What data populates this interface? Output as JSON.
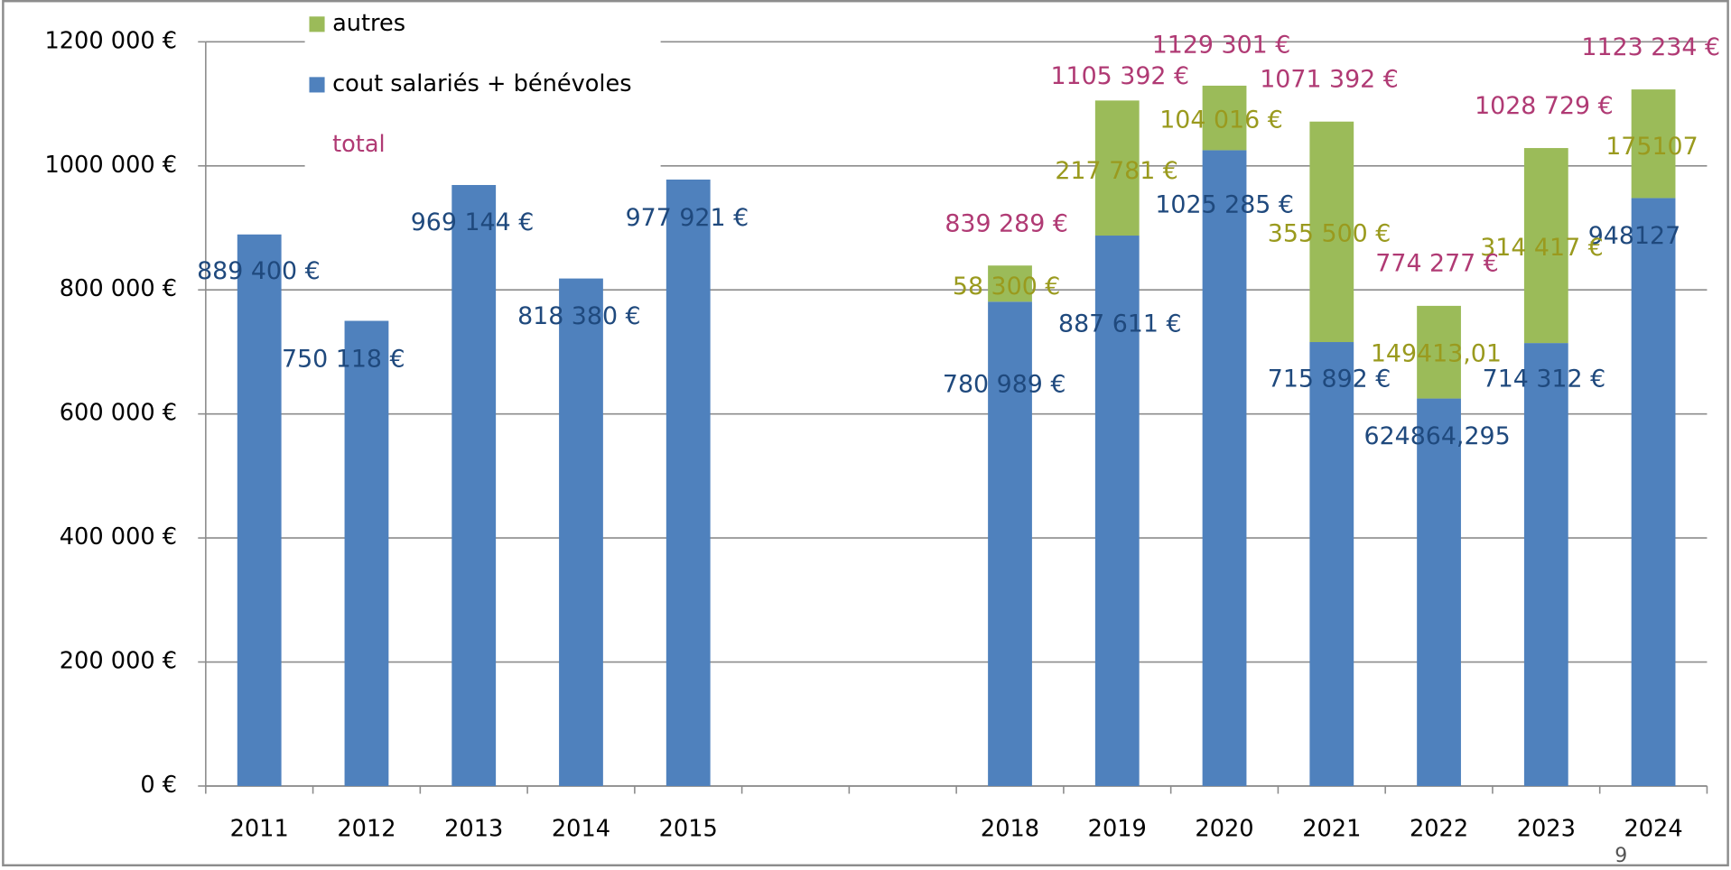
{
  "chart_data": {
    "type": "stacked_bar",
    "categories": [
      "2011",
      "2012",
      "2013",
      "2014",
      "2015",
      null,
      null,
      "2018",
      "2019",
      "2020",
      "2021",
      "2022",
      "2023",
      "2024"
    ],
    "series": [
      {
        "name": "cout salariés + bénévoles",
        "color": "#4f81bd",
        "values": [
          889400,
          750118,
          969144,
          818380,
          977921,
          null,
          null,
          780989,
          887611,
          1025285,
          715892,
          624864.295,
          714312,
          948127
        ],
        "value_labels": [
          "889 400 €",
          "750 118 €",
          "969 144 €",
          "818 380 €",
          "977 921 €",
          null,
          null,
          "780 989 €",
          "887 611 €",
          "1025 285 €",
          "715 892 €",
          "624864,295",
          "714 312 €",
          "948127"
        ],
        "label_color": "#1f497d"
      },
      {
        "name": "autres",
        "color": "#9bbb59",
        "values": [
          null,
          null,
          null,
          null,
          null,
          null,
          null,
          58300,
          217781,
          104016,
          355500,
          149413.01,
          314417,
          175107
        ],
        "value_labels": [
          null,
          null,
          null,
          null,
          null,
          null,
          null,
          "58 300 €",
          "217 781 €",
          "104 016 €",
          "355 500 €",
          "149413,01",
          "314 417 €",
          "175107"
        ],
        "label_color": "#9a9a1e"
      },
      {
        "name": "total",
        "color": "#b03a74",
        "values": [
          null,
          null,
          null,
          null,
          null,
          null,
          null,
          839289,
          1105392,
          1129301,
          1071392,
          774277,
          1028729,
          1123234
        ],
        "value_labels": [
          null,
          null,
          null,
          null,
          null,
          null,
          null,
          "839 289 €",
          "1105 392 €",
          "1129 301 €",
          "1071 392 €",
          "774 277 €",
          "1028 729 €",
          "1123 234 €"
        ]
      }
    ],
    "ylim": [
      0,
      1200000
    ],
    "yticks": [
      {
        "value": 0,
        "label": "0 €"
      },
      {
        "value": 200000,
        "label": "200 000 €"
      },
      {
        "value": 400000,
        "label": "400 000 €"
      },
      {
        "value": 600000,
        "label": "600 000 €"
      },
      {
        "value": 800000,
        "label": "800 000 €"
      },
      {
        "value": 1000000,
        "label": "1000 000 €"
      },
      {
        "value": 1200000,
        "label": "1200 000 €"
      }
    ],
    "grid": true,
    "legend": "top-left"
  },
  "page_number": "9"
}
